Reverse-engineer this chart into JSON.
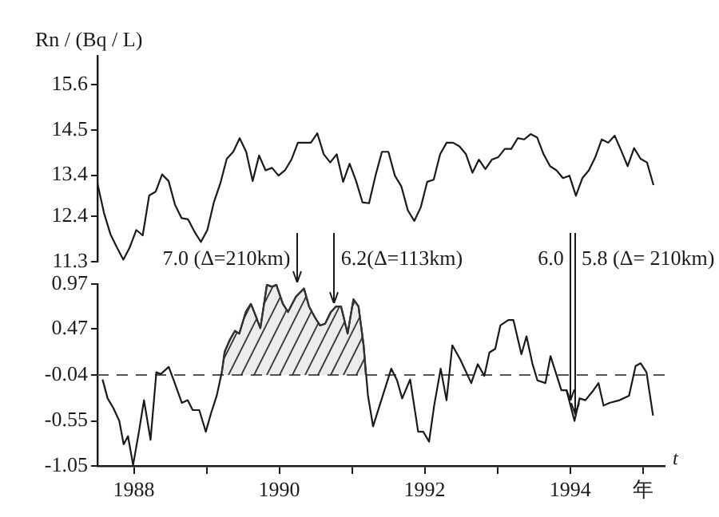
{
  "chart_data": [
    {
      "type": "line",
      "ylabel": "Rn / (Bq / L)",
      "ylim": [
        11.3,
        16.3
      ],
      "yticks": [
        11.3,
        12.4,
        13.4,
        14.5,
        15.6
      ],
      "tick_labels": "y",
      "marker": "none",
      "categories": [
        null,
        null,
        null,
        null,
        null,
        null,
        null,
        null,
        null,
        null,
        null,
        null,
        null,
        null,
        null,
        null,
        null,
        null,
        null,
        null,
        null,
        null,
        null,
        null,
        null,
        null,
        null,
        null,
        null,
        null,
        null,
        null,
        null,
        null,
        null,
        null,
        null,
        null,
        null,
        null,
        null,
        null,
        null,
        null,
        null,
        null,
        null,
        null,
        null,
        null,
        null,
        null,
        null,
        null,
        null,
        null,
        null,
        null,
        null,
        null,
        null,
        null,
        null,
        null,
        null,
        null,
        null,
        null,
        null,
        null,
        null,
        null,
        null,
        null,
        null,
        null,
        null,
        null,
        null,
        null,
        null,
        null,
        null,
        null,
        null,
        null,
        null
      ],
      "series": [
        {
          "color": "#1a1a1a",
          "values": [
            13.2,
            12.49,
            11.97,
            11.65,
            11.35,
            11.65,
            12.07,
            11.94,
            12.91,
            13.0,
            13.42,
            13.26,
            12.68,
            12.36,
            12.33,
            12.03,
            11.78,
            12.07,
            12.74,
            13.2,
            13.8,
            13.97,
            14.3,
            13.97,
            13.26,
            13.88,
            13.52,
            13.58,
            13.39,
            13.52,
            13.78,
            14.19,
            14.19,
            14.19,
            14.42,
            13.91,
            13.71,
            13.91,
            13.24,
            13.68,
            13.26,
            12.74,
            12.72,
            13.39,
            13.97,
            13.97,
            13.39,
            13.13,
            12.55,
            12.29,
            12.62,
            13.24,
            13.29,
            13.91,
            14.19,
            14.19,
            14.1,
            13.91,
            13.46,
            13.78,
            13.55,
            13.78,
            13.84,
            14.04,
            14.04,
            14.3,
            14.27,
            14.4,
            14.32,
            13.91,
            13.62,
            13.52,
            13.33,
            13.39,
            12.9,
            13.33,
            13.52,
            13.84,
            14.27,
            14.19,
            14.36,
            14.0,
            13.62,
            14.06,
            13.8,
            13.71,
            13.16
          ]
        }
      ]
    },
    {
      "type": "line",
      "xlabel": "t",
      "xlim": [
        1987.5,
        1995.3
      ],
      "ylim": [
        -1.05,
        0.97
      ],
      "yticks": [
        -1.05,
        -0.55,
        -0.04,
        0.47,
        0.97
      ],
      "marker": "none",
      "xticks": [
        1988,
        {
          "value": 1989,
          "label": null
        },
        1990,
        {
          "value": 1991,
          "label": null
        },
        1992,
        {
          "value": 1993,
          "label": null
        },
        1994,
        {
          "value": 1995,
          "label": "年"
        }
      ],
      "ref_lines": [
        {
          "axis": "y",
          "value": -0.04,
          "line_style": "dashed",
          "color": "#555555"
        }
      ],
      "annotations": [
        {
          "text": "7.0 (Δ=210km)",
          "x": 1990.24,
          "y": 0.97
        },
        {
          "text": "6.2(Δ=113km)",
          "x": 1990.76,
          "y": 0.72
        },
        {
          "text": "6.0",
          "x": 1994.0,
          "y": -0.36
        },
        {
          "text": "5.8 (Δ= 210km)",
          "x": 1994.07,
          "y": -0.51
        }
      ],
      "series": [
        {
          "type": "area",
          "color": "#333333",
          "x": [
            1989.21,
            1989.25,
            1989.32,
            1989.39,
            1989.45,
            1989.54,
            1989.61,
            1989.67,
            1989.74,
            1989.83,
            1989.9,
            1989.96,
            1990.05,
            1990.12,
            1990.23,
            1990.34,
            1990.41,
            1990.49,
            1990.56,
            1990.63,
            1990.71,
            1990.78,
            1990.85,
            1990.94,
            1991.02,
            1991.09,
            1991.16,
            1991.19
          ],
          "values": [
            -0.01,
            0.22,
            0.35,
            0.45,
            0.42,
            0.66,
            0.75,
            0.63,
            0.48,
            0.96,
            0.94,
            0.96,
            0.75,
            0.66,
            0.83,
            0.92,
            0.72,
            0.6,
            0.51,
            0.53,
            0.66,
            0.72,
            0.72,
            0.42,
            0.8,
            0.72,
            0.29,
            -0.04
          ]
        },
        {
          "color": "#1a1a1a",
          "x": [
            1987.57,
            1987.64,
            1987.72,
            1987.8,
            1987.86,
            1987.92,
            1987.99,
            1988.07,
            1988.14,
            1988.23,
            1988.31,
            1988.37,
            1988.48,
            1988.55,
            1988.66,
            1988.74,
            1988.81,
            1988.9,
            1988.99,
            1989.06,
            1989.14,
            1989.21,
            1989.25,
            1989.32,
            1989.39,
            1989.45,
            1989.54,
            1989.61,
            1989.67,
            1989.74,
            1989.83,
            1989.9,
            1989.96,
            1990.05,
            1990.12,
            1990.23,
            1990.34,
            1990.41,
            1990.49,
            1990.56,
            1990.63,
            1990.71,
            1990.78,
            1990.85,
            1990.94,
            1991.02,
            1991.09,
            1991.16,
            1991.22,
            1991.29,
            1991.38,
            1991.54,
            1991.62,
            1991.69,
            1991.8,
            1991.91,
            1991.98,
            1992.06,
            1992.13,
            1992.22,
            1992.3,
            1992.38,
            1992.49,
            1992.64,
            1992.73,
            1992.82,
            1992.89,
            1992.97,
            1993.04,
            1993.15,
            1993.22,
            1993.33,
            1993.4,
            1993.48,
            1993.55,
            1993.66,
            1993.73,
            1993.88,
            1993.95,
            1994.06,
            1994.13,
            1994.21,
            1994.32,
            1994.39,
            1994.46,
            1994.54,
            1994.68,
            1994.81,
            1994.9,
            1994.97,
            1995.05,
            1995.14
          ],
          "values": [
            -0.09,
            -0.3,
            -0.41,
            -0.55,
            -0.81,
            -0.72,
            -1.04,
            -0.67,
            -0.32,
            -0.76,
            -0.01,
            -0.03,
            0.05,
            -0.1,
            -0.35,
            -0.32,
            -0.43,
            -0.43,
            -0.67,
            -0.47,
            -0.27,
            -0.01,
            0.22,
            0.35,
            0.45,
            0.42,
            0.66,
            0.75,
            0.63,
            0.48,
            0.96,
            0.94,
            0.96,
            0.75,
            0.66,
            0.83,
            0.92,
            0.72,
            0.6,
            0.51,
            0.53,
            0.66,
            0.72,
            0.72,
            0.42,
            0.8,
            0.72,
            0.29,
            -0.27,
            -0.61,
            -0.38,
            0.03,
            -0.1,
            -0.3,
            -0.09,
            -0.67,
            -0.67,
            -0.78,
            -0.38,
            0.03,
            -0.32,
            0.29,
            0.13,
            -0.13,
            0.08,
            -0.05,
            0.21,
            0.25,
            0.51,
            0.57,
            0.57,
            0.19,
            0.39,
            0.09,
            -0.1,
            -0.13,
            0.17,
            -0.21,
            -0.21,
            -0.55,
            -0.3,
            -0.32,
            -0.21,
            -0.13,
            -0.38,
            -0.35,
            -0.32,
            -0.27,
            0.06,
            0.09,
            -0.01,
            -0.49
          ]
        }
      ]
    }
  ]
}
